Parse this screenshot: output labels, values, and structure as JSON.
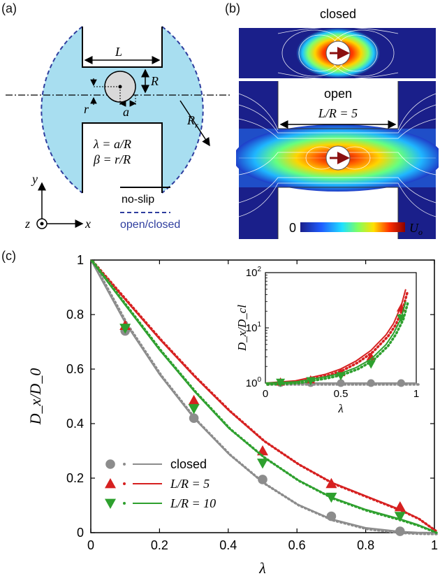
{
  "panels": {
    "a": "(a)",
    "b": "(b)",
    "c": "(c)"
  },
  "schematic": {
    "L": "L",
    "R": "R",
    "Rr": "R",
    "Rr_sub": "r",
    "r": "r",
    "a": "a",
    "lambda_def": "λ = a/R",
    "beta_def": "β = r/R",
    "axis_x": "x",
    "axis_y": "y",
    "axis_z": "z",
    "legend_noslip": "no-slip",
    "legend_open_closed": "open/closed",
    "colors": {
      "fluid": "#a8def0",
      "dashed": "#2e3d9e",
      "wall": "#000000"
    }
  },
  "flowfield": {
    "closed_label": "closed",
    "open_label": "open",
    "LR_label": "L/R = 5",
    "colorbar_min": "0",
    "colorbar_max": "U",
    "colorbar_max_sub": "o",
    "colors": {
      "background": "#1a1f8a",
      "arrow": "#8b1010",
      "hot": "#c40000"
    }
  },
  "chart_data": {
    "type": "scatter",
    "xlabel": "λ",
    "ylabel": "D_x/D_0",
    "xlim": [
      0,
      1
    ],
    "ylim": [
      0,
      1
    ],
    "xticks": [
      "0",
      "0.2",
      "0.4",
      "0.6",
      "0.8",
      "1"
    ],
    "yticks": [
      "0",
      "0.2",
      "0.4",
      "0.6",
      "0.8",
      "1"
    ],
    "grid": false,
    "legend_position": "bottom-left",
    "series": [
      {
        "name": "closed",
        "color": "#8c8c8c",
        "marker": "circle",
        "points": {
          "x": [
            0.1,
            0.3,
            0.5,
            0.7,
            0.9
          ],
          "y": [
            0.74,
            0.42,
            0.195,
            0.06,
            0.005
          ]
        },
        "curve": {
          "x": [
            0,
            0.1,
            0.2,
            0.3,
            0.4,
            0.5,
            0.6,
            0.7,
            0.8,
            0.9,
            0.95,
            1.0
          ],
          "y": [
            1.0,
            0.77,
            0.58,
            0.42,
            0.29,
            0.185,
            0.105,
            0.05,
            0.018,
            0.004,
            0.001,
            0.0
          ]
        }
      },
      {
        "name": "L/R = 5",
        "color": "#d62020",
        "marker": "triangle-up",
        "points": {
          "x": [
            0.1,
            0.3,
            0.5,
            0.7,
            0.9
          ],
          "y": [
            0.76,
            0.485,
            0.3,
            0.18,
            0.095
          ]
        },
        "curve": {
          "x": [
            0,
            0.1,
            0.2,
            0.3,
            0.4,
            0.5,
            0.6,
            0.7,
            0.8,
            0.9,
            0.95,
            1.0
          ],
          "y": [
            1.0,
            0.855,
            0.71,
            0.575,
            0.45,
            0.34,
            0.255,
            0.185,
            0.135,
            0.085,
            0.055,
            0.01
          ]
        }
      },
      {
        "name": "L/R = 10",
        "color": "#2ea02e",
        "marker": "triangle-down",
        "points": {
          "x": [
            0.1,
            0.3,
            0.5,
            0.7,
            0.9
          ],
          "y": [
            0.75,
            0.455,
            0.255,
            0.13,
            0.06
          ]
        },
        "curve": {
          "x": [
            0,
            0.1,
            0.2,
            0.3,
            0.4,
            0.5,
            0.6,
            0.7,
            0.8,
            0.9,
            0.95,
            1.0
          ],
          "y": [
            1.0,
            0.835,
            0.67,
            0.52,
            0.385,
            0.28,
            0.195,
            0.13,
            0.085,
            0.05,
            0.03,
            0.005
          ]
        }
      }
    ],
    "legend_labels": [
      "closed",
      "L/R = 5",
      "L/R = 10"
    ],
    "inset": {
      "type": "scatter",
      "xlabel": "λ",
      "ylabel": "D_x/D_cl",
      "xlim": [
        0,
        1
      ],
      "ylim": [
        1,
        100
      ],
      "yscale": "log",
      "xticks": [
        "0",
        "0.5",
        "1"
      ],
      "yticks": [
        "10^0",
        "10^1",
        "10^2"
      ],
      "series": [
        {
          "name": "closed",
          "color": "#8c8c8c",
          "marker": "circle",
          "points": {
            "x": [
              0.1,
              0.3,
              0.5,
              0.7,
              0.9
            ],
            "y": [
              1.0,
              1.0,
              1.0,
              1.0,
              1.0
            ]
          },
          "curve": {
            "x": [
              0,
              1
            ],
            "y": [
              1.0,
              1.0
            ]
          }
        },
        {
          "name": "L/R = 5",
          "color": "#d62020",
          "marker": "triangle-up",
          "points": {
            "x": [
              0.1,
              0.3,
              0.5,
              0.7,
              0.9
            ],
            "y": [
              1.05,
              1.15,
              1.55,
              3.0,
              23
            ]
          },
          "curve": {
            "x": [
              0,
              0.2,
              0.4,
              0.5,
              0.6,
              0.7,
              0.8,
              0.85,
              0.9,
              0.93
            ],
            "y": [
              1.0,
              1.1,
              1.45,
              1.8,
              2.5,
              3.9,
              7.5,
              12,
              25,
              50
            ]
          }
        },
        {
          "name": "L/R = 10",
          "color": "#2ea02e",
          "marker": "triangle-down",
          "points": {
            "x": [
              0.1,
              0.3,
              0.5,
              0.7,
              0.9
            ],
            "y": [
              1.03,
              1.1,
              1.35,
              2.2,
              15
            ]
          },
          "curve": {
            "x": [
              0,
              0.2,
              0.4,
              0.5,
              0.6,
              0.7,
              0.8,
              0.85,
              0.9,
              0.93
            ],
            "y": [
              1.0,
              1.05,
              1.3,
              1.5,
              1.9,
              2.7,
              5.0,
              8.0,
              15,
              30
            ]
          }
        }
      ]
    }
  }
}
